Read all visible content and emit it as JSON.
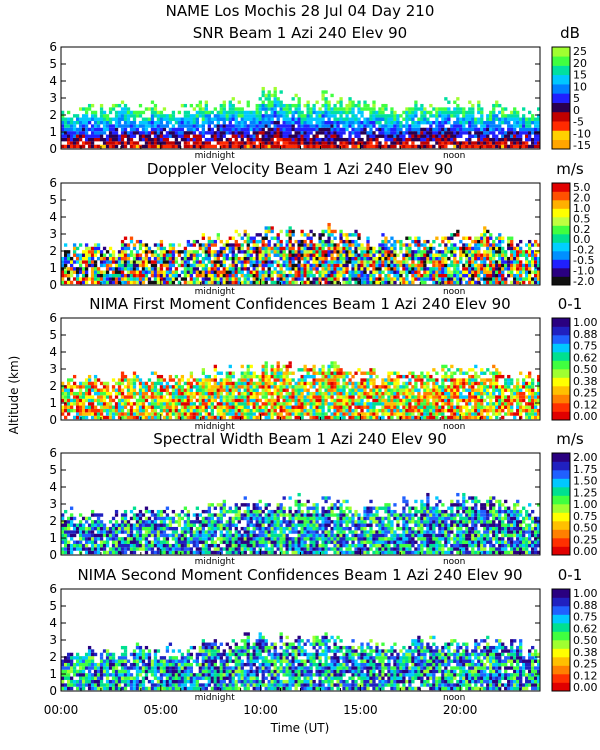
{
  "header": {
    "line1": "NAME Los Mochis   28 Jul 04 Day 210"
  },
  "shared_axes": {
    "ylabel": "Altitude (km)",
    "xlabel": "Time (UT)",
    "x_ticks": [
      "00:00",
      "05:00",
      "10:00",
      "15:00",
      "20:00"
    ],
    "day_markers": [
      "midnight",
      "noon"
    ]
  },
  "colors": {
    "background": "#ffffff",
    "axis": "#000000"
  },
  "chart_data": [
    {
      "type": "heatmap",
      "title": "SNR Beam 1 Azi 240 Elev 90",
      "unit": "dB",
      "xlim": [
        0,
        24
      ],
      "ylim": [
        0,
        6
      ],
      "y_ticks": [
        "0",
        "1",
        "2",
        "3",
        "4",
        "5",
        "6"
      ],
      "colorbar_labels": [
        "25",
        "20",
        "15",
        "10",
        "5",
        "0",
        "-5",
        "-10",
        "-15"
      ],
      "colorbar_colors": [
        "#ffa500",
        "#ffd000",
        "#ff2a00",
        "#c00000",
        "#2a0050",
        "#2020ff",
        "#0080ff",
        "#00c8ff",
        "#00e0a0",
        "#40ff40",
        "#a0ff30"
      ],
      "echo_top_km": [
        2.3,
        2.4,
        2.4,
        2.5,
        2.5,
        2.4,
        2.5,
        2.6,
        2.6,
        2.7,
        3.3,
        2.9,
        2.6,
        3.0,
        2.7,
        2.5,
        2.3,
        2.4,
        2.5,
        2.8,
        2.6,
        2.5,
        2.4,
        2.2
      ]
    },
    {
      "type": "heatmap",
      "title": "Doppler Velocity Beam 1 Azi 240 Elev 90",
      "unit": "m/s",
      "xlim": [
        0,
        24
      ],
      "ylim": [
        0,
        6
      ],
      "y_ticks": [
        "0",
        "1",
        "2",
        "3",
        "4",
        "5",
        "6"
      ],
      "colorbar_labels": [
        "5.0",
        "2.0",
        "1.0",
        "0.5",
        "0.2",
        "0.0",
        "-0.2",
        "-0.5",
        "-1.0",
        "-2.0"
      ],
      "colorbar_colors": [
        "#101010",
        "#2a0080",
        "#2020ff",
        "#0090ff",
        "#00d0ff",
        "#00e090",
        "#40ff40",
        "#c0ff40",
        "#ffff00",
        "#ffb000",
        "#ff5000",
        "#e00000"
      ],
      "echo_top_km": [
        2.2,
        2.3,
        2.2,
        2.5,
        2.4,
        2.5,
        2.6,
        2.8,
        2.9,
        3.0,
        3.3,
        3.0,
        3.1,
        3.2,
        3.0,
        2.7,
        2.6,
        2.5,
        2.6,
        2.8,
        2.9,
        3.1,
        2.6,
        2.3
      ]
    },
    {
      "type": "heatmap",
      "title": "NIMA First Moment Confidences Beam 1 Azi 240 Elev 90",
      "unit": "0-1",
      "xlim": [
        0,
        24
      ],
      "ylim": [
        0,
        6
      ],
      "y_ticks": [
        "0",
        "1",
        "2",
        "3",
        "4",
        "5",
        "6"
      ],
      "colorbar_labels": [
        "1.00",
        "0.88",
        "0.75",
        "0.62",
        "0.50",
        "0.38",
        "0.25",
        "0.12",
        "0.00"
      ],
      "colorbar_colors": [
        "#e00000",
        "#ff3000",
        "#ff8000",
        "#ffc000",
        "#ffff00",
        "#a0ff30",
        "#40ff40",
        "#00e090",
        "#00c8ff",
        "#2060ff",
        "#2020c0",
        "#2a0080"
      ],
      "echo_top_km": [
        2.3,
        2.4,
        2.3,
        2.5,
        2.4,
        2.5,
        2.6,
        2.8,
        2.8,
        3.0,
        3.2,
        3.0,
        3.0,
        3.2,
        2.9,
        2.7,
        2.6,
        2.6,
        2.7,
        2.9,
        2.9,
        3.0,
        2.7,
        2.4
      ]
    },
    {
      "type": "heatmap",
      "title": "Spectral Width Beam 1 Azi 240 Elev 90",
      "unit": "m/s",
      "xlim": [
        0,
        24
      ],
      "ylim": [
        0,
        6
      ],
      "y_ticks": [
        "0",
        "1",
        "2",
        "3",
        "4",
        "5",
        "6"
      ],
      "colorbar_labels": [
        "2.00",
        "1.75",
        "1.50",
        "1.25",
        "1.00",
        "0.75",
        "0.50",
        "0.25",
        "0.00"
      ],
      "colorbar_colors": [
        "#e00000",
        "#ff3000",
        "#ff8000",
        "#ffc000",
        "#ffff00",
        "#a0ff30",
        "#40ff40",
        "#00e090",
        "#00c8ff",
        "#2060ff",
        "#2020c0",
        "#2a0080"
      ],
      "echo_top_km": [
        2.4,
        2.5,
        2.3,
        2.4,
        2.6,
        2.4,
        2.7,
        2.9,
        2.8,
        3.0,
        3.2,
        3.3,
        3.1,
        3.1,
        2.9,
        2.8,
        2.7,
        3.0,
        3.5,
        3.2,
        3.4,
        3.3,
        3.0,
        2.8
      ]
    },
    {
      "type": "heatmap",
      "title": "NIMA Second Moment Confidences Beam 1 Azi 240 Elev 90",
      "unit": "0-1",
      "xlim": [
        0,
        24
      ],
      "ylim": [
        0,
        6
      ],
      "y_ticks": [
        "0",
        "1",
        "2",
        "3",
        "4",
        "5",
        "6"
      ],
      "colorbar_labels": [
        "1.00",
        "0.88",
        "0.75",
        "0.62",
        "0.50",
        "0.38",
        "0.25",
        "0.12",
        "0.00"
      ],
      "colorbar_colors": [
        "#e00000",
        "#ff3000",
        "#ff8000",
        "#ffc000",
        "#ffff00",
        "#a0ff30",
        "#40ff40",
        "#00e090",
        "#00c8ff",
        "#2060ff",
        "#2020c0",
        "#2a0080"
      ],
      "echo_top_km": [
        2.3,
        2.4,
        2.3,
        2.5,
        2.4,
        2.5,
        2.6,
        2.8,
        2.8,
        3.0,
        3.2,
        3.0,
        3.0,
        3.2,
        2.9,
        2.7,
        2.6,
        2.8,
        3.0,
        2.9,
        2.9,
        3.0,
        2.7,
        2.4
      ]
    }
  ]
}
